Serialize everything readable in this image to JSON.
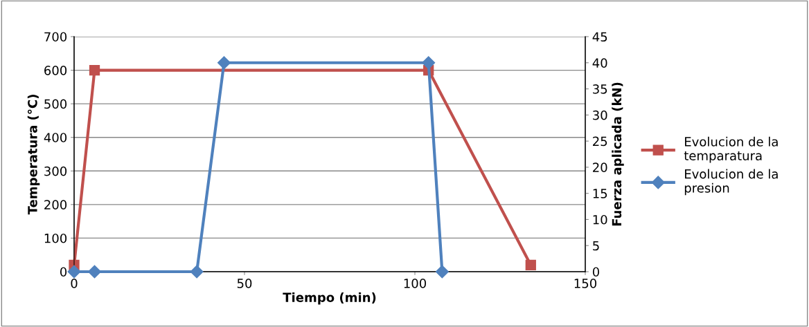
{
  "chart_data": {
    "type": "line",
    "xlabel": "Tiempo (min)",
    "ylabel": "Temperatura (°C)",
    "y2label": "Fuerza aplicada (kN)",
    "xlim": [
      0,
      150
    ],
    "xticks": [
      0,
      50,
      100,
      150
    ],
    "ylim": [
      0,
      700
    ],
    "yticks": [
      0,
      100,
      200,
      300,
      400,
      500,
      600,
      700
    ],
    "y2lim": [
      0,
      45
    ],
    "y2ticks": [
      0,
      5,
      10,
      15,
      20,
      25,
      30,
      35,
      40,
      45
    ],
    "grid": "y",
    "legend": "right",
    "series": [
      {
        "name": "Evolucion de la temparatura",
        "color": "#c0504d",
        "marker": "square",
        "x": [
          0,
          6,
          104,
          134
        ],
        "values": [
          20,
          600,
          600,
          20
        ]
      },
      {
        "name": "Evolucion de la presion",
        "color": "#4f81bd",
        "marker": "diamond",
        "axis": "y2",
        "x": [
          0,
          6,
          36,
          44,
          104,
          108
        ],
        "values": [
          0,
          0,
          0,
          40,
          40,
          0
        ]
      }
    ]
  }
}
